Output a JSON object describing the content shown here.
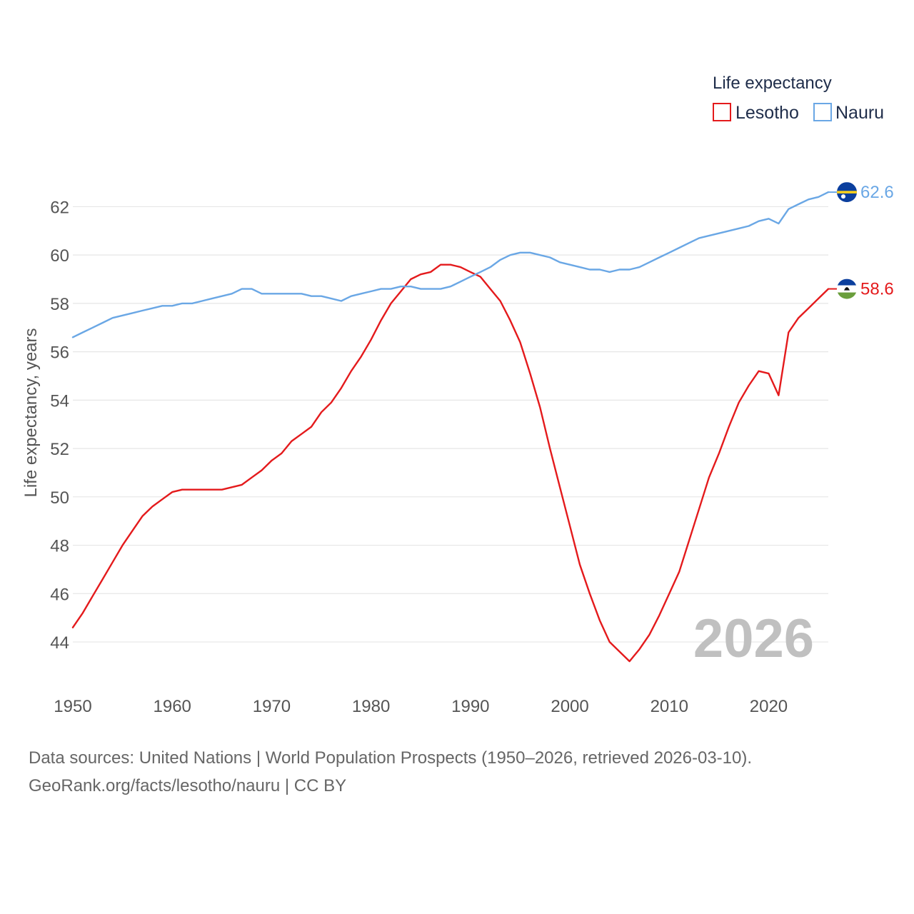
{
  "chart_data": {
    "type": "line",
    "legend_title": "Life expectancy",
    "ylabel": "Life expectancy, years",
    "xlabel": "",
    "xlim": [
      1950,
      2026
    ],
    "ylim": [
      42.2,
      63.4
    ],
    "x_ticks": [
      1950,
      1960,
      1970,
      1980,
      1990,
      2000,
      2010,
      2020
    ],
    "y_ticks": [
      44,
      46,
      48,
      50,
      52,
      54,
      56,
      58,
      60,
      62
    ],
    "year_label": "2026",
    "legend_position": "top-right",
    "series": [
      {
        "name": "Lesotho",
        "color": "#e41a1c",
        "end_label": "58.6",
        "flag": "lesotho-flag",
        "x": [
          1950,
          1951,
          1952,
          1953,
          1954,
          1955,
          1956,
          1957,
          1958,
          1959,
          1960,
          1961,
          1962,
          1963,
          1964,
          1965,
          1966,
          1967,
          1968,
          1969,
          1970,
          1971,
          1972,
          1973,
          1974,
          1975,
          1976,
          1977,
          1978,
          1979,
          1980,
          1981,
          1982,
          1983,
          1984,
          1985,
          1986,
          1987,
          1988,
          1989,
          1990,
          1991,
          1992,
          1993,
          1994,
          1995,
          1996,
          1997,
          1998,
          1999,
          2000,
          2001,
          2002,
          2003,
          2004,
          2005,
          2006,
          2007,
          2008,
          2009,
          2010,
          2011,
          2012,
          2013,
          2014,
          2015,
          2016,
          2017,
          2018,
          2019,
          2020,
          2021,
          2022,
          2023,
          2024,
          2025,
          2026
        ],
        "values": [
          44.6,
          45.2,
          45.9,
          46.6,
          47.3,
          48.0,
          48.6,
          49.2,
          49.6,
          49.9,
          50.2,
          50.3,
          50.3,
          50.3,
          50.3,
          50.3,
          50.4,
          50.5,
          50.8,
          51.1,
          51.5,
          51.8,
          52.3,
          52.6,
          52.9,
          53.5,
          53.9,
          54.5,
          55.2,
          55.8,
          56.5,
          57.3,
          58.0,
          58.5,
          59.0,
          59.2,
          59.3,
          59.6,
          59.6,
          59.5,
          59.3,
          59.1,
          58.6,
          58.1,
          57.3,
          56.4,
          55.1,
          53.7,
          52.0,
          50.4,
          48.8,
          47.2,
          46.0,
          44.9,
          44.0,
          43.6,
          43.2,
          43.7,
          44.3,
          45.1,
          46.0,
          46.9,
          48.2,
          49.5,
          50.8,
          51.8,
          52.9,
          53.9,
          54.6,
          55.2,
          55.1,
          54.2,
          56.8,
          57.4,
          57.8,
          58.2,
          58.6
        ]
      },
      {
        "name": "Nauru",
        "color": "#6aa7e5",
        "end_label": "62.6",
        "flag": "nauru-flag",
        "x": [
          1950,
          1951,
          1952,
          1953,
          1954,
          1955,
          1956,
          1957,
          1958,
          1959,
          1960,
          1961,
          1962,
          1963,
          1964,
          1965,
          1966,
          1967,
          1968,
          1969,
          1970,
          1971,
          1972,
          1973,
          1974,
          1975,
          1976,
          1977,
          1978,
          1979,
          1980,
          1981,
          1982,
          1983,
          1984,
          1985,
          1986,
          1987,
          1988,
          1989,
          1990,
          1991,
          1992,
          1993,
          1994,
          1995,
          1996,
          1997,
          1998,
          1999,
          2000,
          2001,
          2002,
          2003,
          2004,
          2005,
          2006,
          2007,
          2008,
          2009,
          2010,
          2011,
          2012,
          2013,
          2014,
          2015,
          2016,
          2017,
          2018,
          2019,
          2020,
          2021,
          2022,
          2023,
          2024,
          2025,
          2026
        ],
        "values": [
          56.6,
          56.8,
          57.0,
          57.2,
          57.4,
          57.5,
          57.6,
          57.7,
          57.8,
          57.9,
          57.9,
          58.0,
          58.0,
          58.1,
          58.2,
          58.3,
          58.4,
          58.6,
          58.6,
          58.4,
          58.4,
          58.4,
          58.4,
          58.4,
          58.3,
          58.3,
          58.2,
          58.1,
          58.3,
          58.4,
          58.5,
          58.6,
          58.6,
          58.7,
          58.7,
          58.6,
          58.6,
          58.6,
          58.7,
          58.9,
          59.1,
          59.3,
          59.5,
          59.8,
          60.0,
          60.1,
          60.1,
          60.0,
          59.9,
          59.7,
          59.6,
          59.5,
          59.4,
          59.4,
          59.3,
          59.4,
          59.4,
          59.5,
          59.7,
          59.9,
          60.1,
          60.3,
          60.5,
          60.7,
          60.8,
          60.9,
          61.0,
          61.1,
          61.2,
          61.4,
          61.5,
          61.3,
          61.9,
          62.1,
          62.3,
          62.4,
          62.6
        ]
      }
    ]
  },
  "footer": {
    "source_line": "Data sources: United Nations | World Population Prospects (1950–2026, retrieved 2026-03-10).",
    "link_line": "GeoRank.org/facts/lesotho/nauru | CC BY"
  }
}
